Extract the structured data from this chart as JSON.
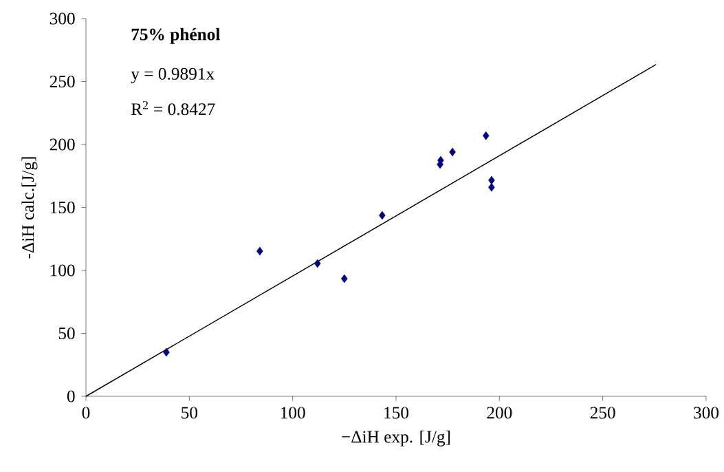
{
  "chart_data": {
    "type": "scatter",
    "xlabel": "−ΔiH exp. [J/g]",
    "ylabel": "-ΔiH calc.[J/g]",
    "annotations": [
      "75% phénol",
      "y = 0.9891x",
      "R$^{2}$ = 0.8427"
    ],
    "xlim": [
      0,
      300
    ],
    "ylim": [
      0,
      300
    ],
    "xticks": [
      0,
      50,
      100,
      150,
      200,
      250,
      300
    ],
    "yticks": [
      0,
      50,
      100,
      150,
      200,
      250,
      300
    ],
    "grid": false,
    "series": [
      {
        "marker": "diamond",
        "color": "#000080",
        "x": [
          38.9,
          84.1,
          112,
          125,
          143.3,
          171.3,
          171.6,
          177.3,
          193.5,
          196.2,
          196.2
        ],
        "values": [
          35,
          115.3,
          105.5,
          93.4,
          143.7,
          184.2,
          187.4,
          194,
          207,
          171.6,
          166
        ]
      },
      {
        "type": "line",
        "color": "#000000",
        "x": [
          0,
          275.7
        ],
        "values": [
          0,
          263.4
        ]
      }
    ]
  }
}
